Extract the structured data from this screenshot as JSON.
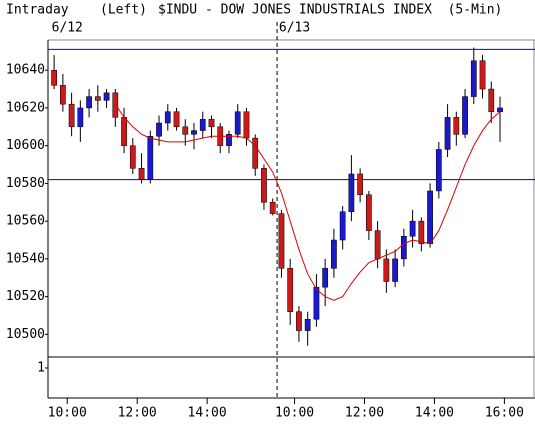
{
  "chart_data": {
    "type": "candlestick",
    "header": {
      "mode": "Intraday",
      "axis_side": "(Left)",
      "title": "$INDU - DOW JONES INDUSTRIALS INDEX  (5-Min)"
    },
    "date_labels": [
      {
        "value": 2,
        "label": "6/12"
      },
      {
        "value": 28,
        "label": "6/13"
      }
    ],
    "day_break": 26,
    "open": [
      10640,
      10632,
      10622,
      10610,
      10620,
      10626,
      10624,
      10628,
      10615,
      10600,
      10588,
      10582,
      10605,
      10612,
      10618,
      10610,
      10606,
      10608,
      10614,
      10610,
      10600,
      10606,
      10618,
      10604,
      10588,
      10570,
      10564,
      10535,
      10512,
      10502,
      10508,
      10525,
      10535,
      10550,
      10565,
      10585,
      10574,
      10555,
      10540,
      10528,
      10540,
      10552,
      10560,
      10548,
      10576,
      10598,
      10615,
      10606,
      10626,
      10645,
      10630,
      10618
    ],
    "high": [
      10648,
      10638,
      10628,
      10624,
      10630,
      10632,
      10630,
      10630,
      10620,
      10604,
      10596,
      10608,
      10616,
      10622,
      10620,
      10614,
      10612,
      10618,
      10616,
      10612,
      10608,
      10622,
      10620,
      10606,
      10590,
      10572,
      10566,
      10540,
      10515,
      10512,
      10532,
      10540,
      10556,
      10568,
      10595,
      10588,
      10576,
      10560,
      10545,
      10545,
      10556,
      10566,
      10562,
      10580,
      10602,
      10622,
      10618,
      10630,
      10652,
      10648,
      10634,
      10626
    ],
    "low": [
      10630,
      10618,
      10605,
      10602,
      10615,
      10618,
      10620,
      10610,
      10596,
      10585,
      10580,
      10580,
      10600,
      10608,
      10608,
      10600,
      10598,
      10604,
      10604,
      10596,
      10596,
      10604,
      10600,
      10584,
      10566,
      10563,
      10530,
      10505,
      10496,
      10494,
      10504,
      10515,
      10530,
      10545,
      10560,
      10570,
      10550,
      10535,
      10522,
      10525,
      10536,
      10546,
      10544,
      10546,
      10572,
      10594,
      10600,
      10604,
      10622,
      10625,
      10612,
      10602
    ],
    "close": [
      10632,
      10622,
      10610,
      10620,
      10626,
      10624,
      10628,
      10615,
      10600,
      10588,
      10582,
      10605,
      10612,
      10618,
      10610,
      10606,
      10608,
      10614,
      10610,
      10600,
      10606,
      10618,
      10604,
      10588,
      10570,
      10564,
      10535,
      10512,
      10502,
      10508,
      10525,
      10535,
      10550,
      10565,
      10585,
      10574,
      10555,
      10540,
      10528,
      10540,
      10552,
      10560,
      10548,
      10576,
      10598,
      10615,
      10606,
      10626,
      10645,
      10630,
      10618,
      10620
    ],
    "ma": [
      null,
      null,
      null,
      null,
      null,
      null,
      null,
      10622,
      10615,
      10610,
      10606,
      10604,
      10603,
      10602,
      10602,
      10602,
      10603,
      10604,
      10605,
      10605,
      10605,
      10605,
      10604,
      10600,
      10593,
      10586,
      10575,
      10560,
      10545,
      10532,
      10524,
      10520,
      10518,
      10520,
      10527,
      10533,
      10538,
      10540,
      10542,
      10544,
      10548,
      10550,
      10549,
      10548,
      10555,
      10566,
      10578,
      10590,
      10600,
      10608,
      10614,
      10618
    ],
    "up_color": "#1a1acc",
    "down_color": "#cc1a1a",
    "ma_color": "#dd0000",
    "hline_color": "#0000cc",
    "hlines": [
      10651,
      10582
    ],
    "xlim": [
      -0.2,
      55.5
    ],
    "xticks": [
      {
        "value": 2,
        "label": "10:00"
      },
      {
        "value": 10,
        "label": "12:00"
      },
      {
        "value": 18,
        "label": "14:00"
      },
      {
        "value": 28,
        "label": "10:00"
      },
      {
        "value": 36,
        "label": "12:00"
      },
      {
        "value": 44,
        "label": "14:00"
      },
      {
        "value": 52,
        "label": "16:00"
      }
    ],
    "ylim": [
      10488,
      10656
    ],
    "yticks": [
      10500,
      10520,
      10540,
      10560,
      10580,
      10600,
      10620,
      10640
    ],
    "lower_panel_yticks": [
      1
    ]
  }
}
